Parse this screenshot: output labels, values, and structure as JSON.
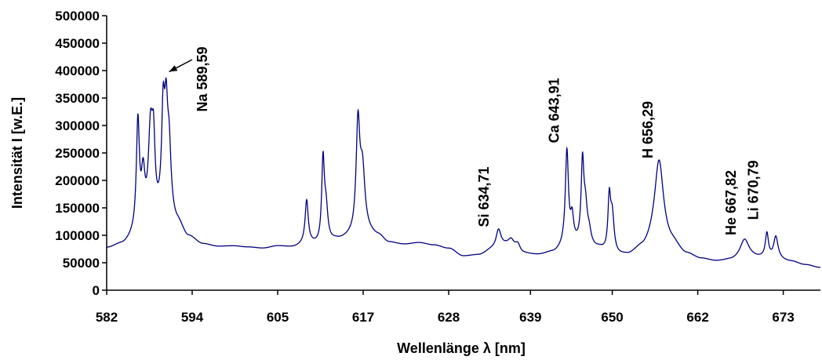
{
  "chart_data": {
    "type": "line",
    "title": "",
    "xlabel": "Wellenlänge λ [nm]",
    "ylabel": "Intensität I [w.E.]",
    "xlim": [
      582,
      678
    ],
    "ylim": [
      0,
      500000
    ],
    "grid": false,
    "legend": "none",
    "line_color": "#000080",
    "x_tick_labels": [
      "582",
      "594",
      "605",
      "617",
      "628",
      "639",
      "650",
      "662",
      "673"
    ],
    "x_tick_values": [
      582,
      593.5,
      605,
      616.5,
      628,
      639,
      650,
      661.5,
      673
    ],
    "y_tick_labels": [
      "0",
      "50000",
      "100000",
      "150000",
      "200000",
      "250000",
      "300000",
      "350000",
      "400000",
      "450000",
      "500000"
    ],
    "y_tick_values": [
      0,
      50000,
      100000,
      150000,
      200000,
      250000,
      300000,
      350000,
      400000,
      450000,
      500000
    ],
    "baseline": [
      [
        582,
        76000
      ],
      [
        584,
        82000
      ],
      [
        586,
        96000
      ],
      [
        588,
        116000
      ],
      [
        590,
        140000
      ],
      [
        591.5,
        120000
      ],
      [
        593,
        96000
      ],
      [
        595,
        83000
      ],
      [
        597,
        79000
      ],
      [
        599,
        80000
      ],
      [
        601,
        78000
      ],
      [
        603,
        76000
      ],
      [
        605,
        80000
      ],
      [
        607,
        78000
      ],
      [
        609,
        84000
      ],
      [
        611,
        80000
      ],
      [
        613,
        90000
      ],
      [
        615,
        95000
      ],
      [
        617,
        102000
      ],
      [
        618.5,
        98000
      ],
      [
        620,
        86000
      ],
      [
        622,
        83000
      ],
      [
        624,
        86000
      ],
      [
        626,
        82000
      ],
      [
        628,
        76000
      ],
      [
        630,
        62000
      ],
      [
        632,
        64000
      ],
      [
        634,
        74000
      ],
      [
        636,
        82000
      ],
      [
        638,
        66000
      ],
      [
        640,
        64000
      ],
      [
        642,
        68000
      ],
      [
        644,
        80000
      ],
      [
        646,
        82000
      ],
      [
        648,
        74000
      ],
      [
        650,
        60000
      ],
      [
        652,
        62000
      ],
      [
        654,
        74000
      ],
      [
        656,
        92000
      ],
      [
        658,
        82000
      ],
      [
        660,
        64000
      ],
      [
        662,
        56000
      ],
      [
        664,
        52000
      ],
      [
        666,
        54000
      ],
      [
        668,
        60000
      ],
      [
        670,
        58000
      ],
      [
        672,
        56000
      ],
      [
        674,
        52000
      ],
      [
        676,
        46000
      ],
      [
        678,
        41000
      ]
    ],
    "peaks": [
      {
        "x": 586.2,
        "h": 200000,
        "w": 0.25
      },
      {
        "x": 586.9,
        "h": 90000,
        "w": 0.3
      },
      {
        "x": 587.9,
        "h": 160000,
        "w": 0.35
      },
      {
        "x": 588.3,
        "h": 120000,
        "w": 0.25
      },
      {
        "x": 589.6,
        "h": 170000,
        "w": 0.25
      },
      {
        "x": 590.0,
        "h": 150000,
        "w": 0.25
      },
      {
        "x": 590.4,
        "h": 110000,
        "w": 0.3
      },
      {
        "x": 608.9,
        "h": 78000,
        "w": 0.25
      },
      {
        "x": 611.1,
        "h": 148000,
        "w": 0.22
      },
      {
        "x": 611.5,
        "h": 60000,
        "w": 0.3
      },
      {
        "x": 615.8,
        "h": 195000,
        "w": 0.3
      },
      {
        "x": 616.4,
        "h": 110000,
        "w": 0.4
      },
      {
        "x": 634.7,
        "h": 34000,
        "w": 0.4
      },
      {
        "x": 636.4,
        "h": 10000,
        "w": 0.4
      },
      {
        "x": 637.3,
        "h": 14000,
        "w": 0.4
      },
      {
        "x": 643.9,
        "h": 170000,
        "w": 0.25
      },
      {
        "x": 644.6,
        "h": 45000,
        "w": 0.25
      },
      {
        "x": 646.0,
        "h": 140000,
        "w": 0.22
      },
      {
        "x": 646.4,
        "h": 60000,
        "w": 0.3
      },
      {
        "x": 646.9,
        "h": 20000,
        "w": 0.3
      },
      {
        "x": 649.6,
        "h": 96000,
        "w": 0.22
      },
      {
        "x": 650.0,
        "h": 70000,
        "w": 0.3
      },
      {
        "x": 656.3,
        "h": 145000,
        "w": 0.7
      },
      {
        "x": 667.8,
        "h": 32000,
        "w": 0.7
      },
      {
        "x": 670.8,
        "h": 44000,
        "w": 0.25
      },
      {
        "x": 672.0,
        "h": 40000,
        "w": 0.35
      }
    ],
    "annotations": [
      {
        "text": "Na 589,59",
        "x": 595.5,
        "y": 325000,
        "arrow": true,
        "arrow_from": [
          593.5,
          420000
        ],
        "arrow_to": [
          590.4,
          398000
        ]
      },
      {
        "text": "Si 634,71",
        "x": 633.4,
        "y": 115000
      },
      {
        "text": "Ca 643,91",
        "x": 642.8,
        "y": 268000
      },
      {
        "text": "H 656,29",
        "x": 655.4,
        "y": 240000
      },
      {
        "text": "He 667,82",
        "x": 666.6,
        "y": 100000
      },
      {
        "text": "Li 670,79",
        "x": 669.6,
        "y": 128000
      }
    ]
  }
}
